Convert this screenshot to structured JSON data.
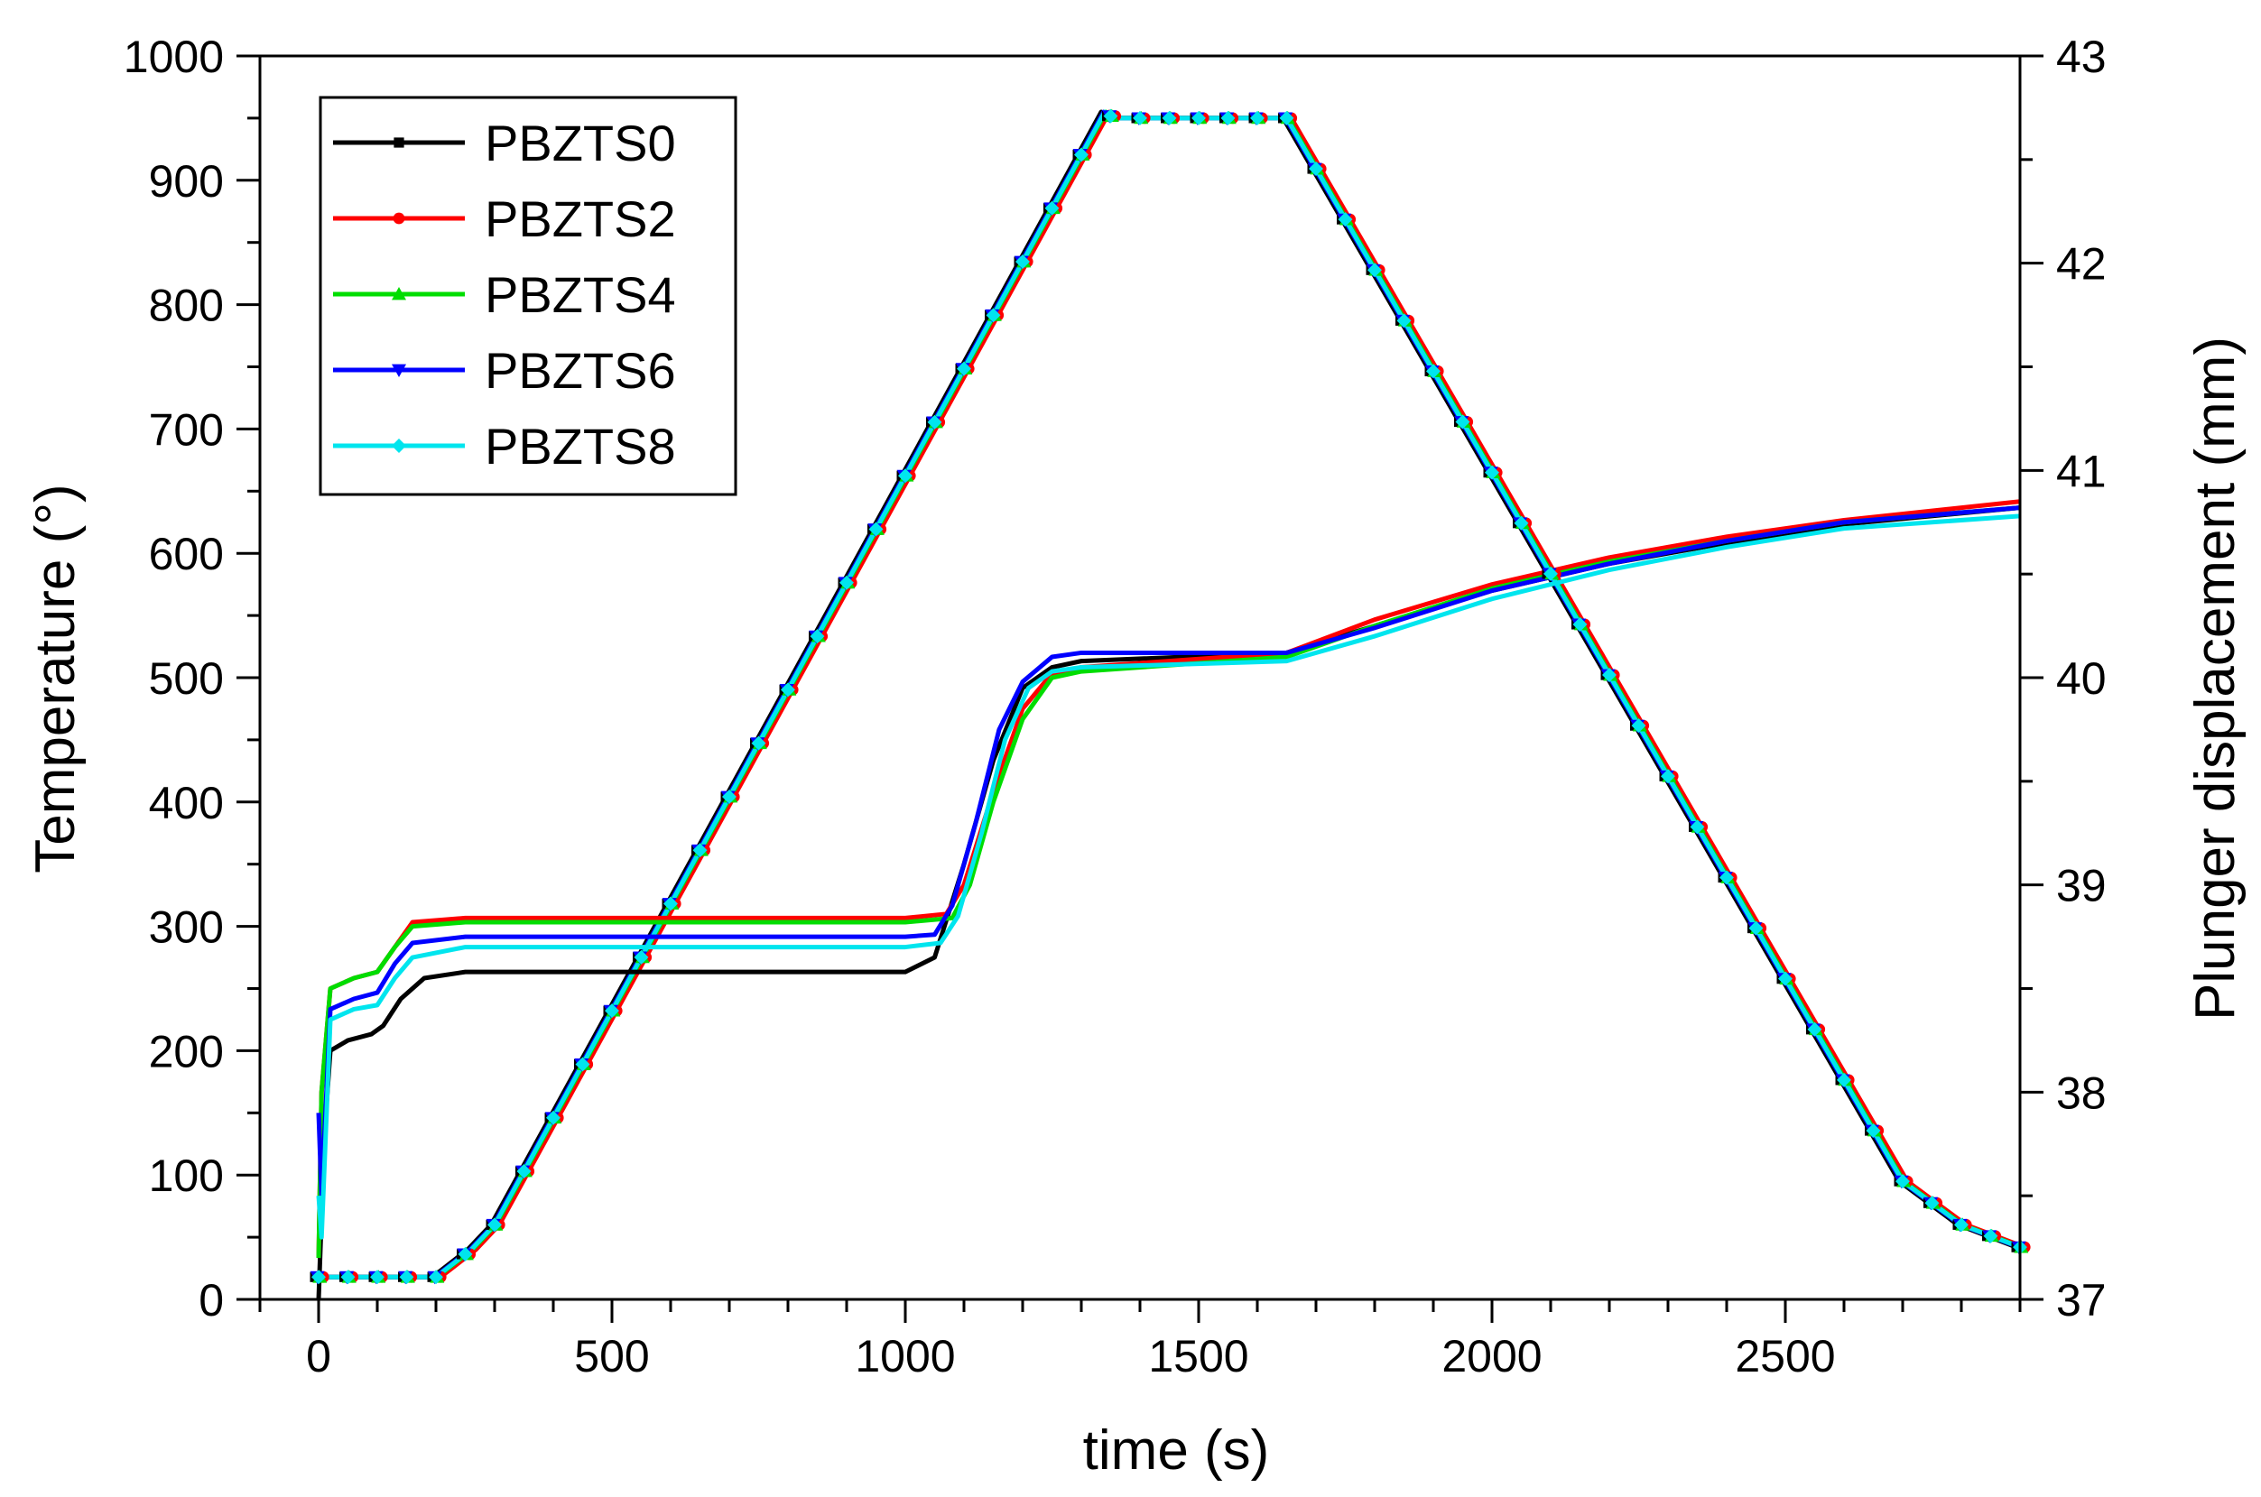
{
  "chart_data": {
    "type": "line",
    "title": "",
    "xlabel": "time (s)",
    "ylabel_left": "Temperature (°)",
    "ylabel_right": "Plunger displacement (mm)",
    "xlim": [
      -100,
      2900
    ],
    "ylim_left": [
      0,
      1000
    ],
    "ylim_right": [
      37,
      43
    ],
    "x_ticks": [
      0,
      500,
      1000,
      1500,
      2000,
      2500
    ],
    "x_tick_labels": [
      "0",
      "500",
      "1000",
      "1500",
      "2000",
      "2500"
    ],
    "y_left_ticks": [
      0,
      100,
      200,
      300,
      400,
      500,
      600,
      700,
      800,
      900,
      1000
    ],
    "y_left_tick_labels": [
      "0",
      "100",
      "200",
      "300",
      "400",
      "500",
      "600",
      "700",
      "800",
      "900",
      "1000"
    ],
    "y_right_ticks": [
      37,
      38,
      39,
      40,
      41,
      42,
      43
    ],
    "y_right_tick_labels": [
      "37",
      "38",
      "39",
      "40",
      "41",
      "42",
      "43"
    ],
    "grid": false,
    "legend_position": "top-left",
    "temperature_profile": {
      "x": [
        0,
        100,
        200,
        260,
        300,
        1340,
        1355,
        1650,
        2700,
        2800,
        2900
      ],
      "y": [
        18,
        18,
        18,
        40,
        60,
        955,
        950,
        950,
        95,
        60,
        42
      ]
    },
    "series": [
      {
        "name": "PBZTS0",
        "color": "#000000",
        "marker": "square",
        "displacement_x": [
          0,
          10,
          20,
          50,
          90,
          110,
          140,
          180,
          250,
          500,
          1000,
          1050,
          1100,
          1150,
          1200,
          1250,
          1300,
          1650,
          1800,
          2000,
          2200,
          2400,
          2600,
          2900
        ],
        "displacement_y": [
          37.0,
          37.8,
          38.2,
          38.25,
          38.28,
          38.32,
          38.45,
          38.55,
          38.58,
          38.58,
          38.58,
          38.65,
          39.1,
          39.6,
          39.95,
          40.05,
          40.08,
          40.12,
          40.25,
          40.42,
          40.55,
          40.65,
          40.74,
          40.82
        ]
      },
      {
        "name": "PBZTS2",
        "color": "#ff0000",
        "marker": "circle",
        "displacement_x": [
          0,
          5,
          20,
          60,
          100,
          130,
          160,
          250,
          500,
          1000,
          1070,
          1100,
          1150,
          1200,
          1250,
          1300,
          1650,
          1800,
          2000,
          2200,
          2400,
          2600,
          2900
        ],
        "displacement_y": [
          37.2,
          38.0,
          38.5,
          38.55,
          38.58,
          38.7,
          38.82,
          38.84,
          38.84,
          38.84,
          38.86,
          39.0,
          39.45,
          39.85,
          40.02,
          40.05,
          40.12,
          40.28,
          40.45,
          40.58,
          40.68,
          40.76,
          40.85
        ]
      },
      {
        "name": "PBZTS4",
        "color": "#00dd00",
        "marker": "triangle",
        "displacement_x": [
          0,
          5,
          20,
          60,
          100,
          130,
          160,
          250,
          500,
          1000,
          1080,
          1110,
          1150,
          1200,
          1250,
          1300,
          1650,
          1800,
          2000,
          2200,
          2400,
          2600,
          2900
        ],
        "displacement_y": [
          37.2,
          38.0,
          38.5,
          38.55,
          38.58,
          38.7,
          38.8,
          38.82,
          38.82,
          38.82,
          38.84,
          39.0,
          39.4,
          39.8,
          40.0,
          40.03,
          40.1,
          40.25,
          40.43,
          40.56,
          40.66,
          40.75,
          40.82
        ]
      },
      {
        "name": "PBZTS6",
        "color": "#0000ff",
        "marker": "triangle-down",
        "displacement_x": [
          0,
          5,
          20,
          60,
          100,
          130,
          160,
          250,
          500,
          1000,
          1050,
          1080,
          1120,
          1160,
          1200,
          1250,
          1300,
          1650,
          1800,
          2000,
          2200,
          2400,
          2600,
          2900
        ],
        "displacement_y": [
          37.9,
          37.5,
          38.4,
          38.45,
          38.48,
          38.62,
          38.72,
          38.75,
          38.75,
          38.75,
          38.76,
          38.9,
          39.3,
          39.75,
          39.98,
          40.1,
          40.12,
          40.12,
          40.24,
          40.42,
          40.55,
          40.66,
          40.75,
          40.82
        ]
      },
      {
        "name": "PBZTS8",
        "color": "#00e5ee",
        "marker": "diamond",
        "displacement_x": [
          0,
          5,
          20,
          60,
          100,
          130,
          160,
          250,
          500,
          1000,
          1060,
          1090,
          1130,
          1170,
          1210,
          1250,
          1300,
          1650,
          1800,
          2000,
          2200,
          2400,
          2600,
          2900
        ],
        "displacement_y": [
          37.5,
          37.3,
          38.35,
          38.4,
          38.42,
          38.55,
          38.65,
          38.7,
          38.7,
          38.7,
          38.72,
          38.85,
          39.25,
          39.7,
          39.95,
          40.03,
          40.05,
          40.08,
          40.2,
          40.38,
          40.52,
          40.63,
          40.72,
          40.78
        ]
      }
    ]
  }
}
